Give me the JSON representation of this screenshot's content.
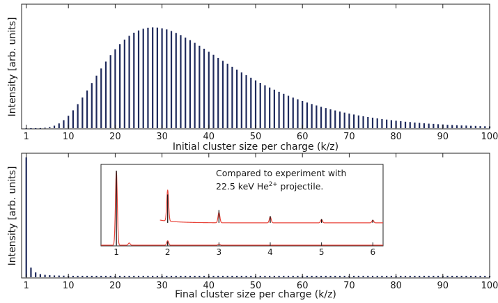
{
  "chart_data": [
    {
      "type": "bar",
      "panel": "top",
      "xlabel": "Initial cluster size per charge (k/z)",
      "ylabel": "Intensity [arb. units]",
      "xlim": [
        0,
        100
      ],
      "ylim": [
        0,
        1.05
      ],
      "xticks": [
        1,
        10,
        20,
        30,
        40,
        50,
        60,
        70,
        80,
        90,
        100
      ],
      "bar_color": "#1f2a5c",
      "x_start": 1,
      "values": [
        0.0,
        0.0,
        0.0,
        0.001,
        0.004,
        0.01,
        0.022,
        0.042,
        0.071,
        0.11,
        0.158,
        0.213,
        0.272,
        0.334,
        0.4,
        0.465,
        0.529,
        0.59,
        0.647,
        0.699,
        0.745,
        0.785,
        0.818,
        0.846,
        0.866,
        0.881,
        0.89,
        0.893,
        0.891,
        0.885,
        0.875,
        0.861,
        0.844,
        0.825,
        0.803,
        0.78,
        0.756,
        0.73,
        0.704,
        0.677,
        0.65,
        0.623,
        0.597,
        0.57,
        0.544,
        0.519,
        0.494,
        0.47,
        0.446,
        0.423,
        0.401,
        0.38,
        0.36,
        0.341,
        0.322,
        0.304,
        0.287,
        0.271,
        0.256,
        0.241,
        0.227,
        0.214,
        0.201,
        0.189,
        0.178,
        0.167,
        0.157,
        0.147,
        0.138,
        0.129,
        0.121,
        0.113,
        0.106,
        0.099,
        0.093,
        0.087,
        0.081,
        0.076,
        0.071,
        0.066,
        0.062,
        0.057,
        0.054,
        0.05,
        0.047,
        0.043,
        0.04,
        0.038,
        0.035,
        0.033,
        0.03,
        0.028,
        0.026,
        0.024,
        0.023,
        0.021,
        0.02,
        0.018,
        0.017,
        0.016
      ]
    },
    {
      "type": "bar",
      "panel": "bottom",
      "xlabel": "Final cluster size per charge (k/z)",
      "ylabel": "Intensity [arb. units]",
      "xlim": [
        0,
        100
      ],
      "ylim": [
        0,
        1.05
      ],
      "xticks": [
        1,
        10,
        20,
        30,
        40,
        50,
        60,
        70,
        80,
        90,
        100
      ],
      "bar_color": "#1f2a5c",
      "x_start": 1,
      "values": [
        1.0,
        0.08,
        0.04,
        0.026,
        0.02,
        0.017,
        0.015,
        0.014,
        0.013,
        0.012,
        0.012,
        0.012,
        0.012,
        0.012,
        0.012,
        0.012,
        0.012,
        0.012,
        0.012,
        0.012,
        0.012,
        0.012,
        0.012,
        0.012,
        0.012,
        0.012,
        0.012,
        0.012,
        0.012,
        0.012,
        0.012,
        0.012,
        0.012,
        0.012,
        0.012,
        0.012,
        0.012,
        0.012,
        0.012,
        0.012,
        0.012,
        0.012,
        0.012,
        0.012,
        0.012,
        0.012,
        0.012,
        0.012,
        0.012,
        0.012,
        0.012,
        0.012,
        0.012,
        0.012,
        0.012,
        0.012,
        0.012,
        0.012,
        0.012,
        0.012,
        0.012,
        0.012,
        0.012,
        0.012,
        0.012,
        0.012,
        0.012,
        0.012,
        0.012,
        0.012,
        0.012,
        0.012,
        0.012,
        0.012,
        0.012,
        0.012,
        0.012,
        0.012,
        0.012,
        0.012,
        0.012,
        0.012,
        0.012,
        0.012,
        0.012,
        0.012,
        0.012,
        0.012,
        0.012,
        0.012,
        0.012,
        0.012,
        0.012,
        0.012,
        0.012,
        0.012,
        0.012,
        0.012,
        0.012,
        0.012
      ]
    },
    {
      "type": "line",
      "panel": "inset",
      "xlim": [
        0.7,
        6.2
      ],
      "ylim": [
        0,
        1.0
      ],
      "xticks": [
        1,
        2,
        3,
        4,
        5,
        6
      ],
      "annotation_line1": "Compared to experiment with",
      "annotation_line2_prefix": "22.5 keV He",
      "annotation_superscript": "2+",
      "annotation_line2_suffix": " projectile.",
      "series": [
        {
          "color": "#e8443a",
          "baseline": 0.0,
          "peaks": [
            {
              "x": 1.0,
              "height": 1.0
            },
            {
              "x": 1.25,
              "height": 0.03
            },
            {
              "x": 2.0,
              "height": 0.06
            },
            {
              "x": 3.0,
              "height": 0.015
            }
          ]
        },
        {
          "color": "#e8443a",
          "baseline": 0.3,
          "x_from": 1.85,
          "x_to": 6.2,
          "peaks": [
            {
              "x": 2.0,
              "height": 0.42
            },
            {
              "x": 3.0,
              "height": 0.14
            },
            {
              "x": 4.0,
              "height": 0.08
            },
            {
              "x": 5.0,
              "height": 0.045
            },
            {
              "x": 6.0,
              "height": 0.035
            }
          ]
        },
        {
          "color": "#111111",
          "baseline": 0.3,
          "sticks": [
            {
              "x": 2.0,
              "height": 0.38
            },
            {
              "x": 3.0,
              "height": 0.17
            },
            {
              "x": 4.0,
              "height": 0.09
            },
            {
              "x": 5.0,
              "height": 0.05
            },
            {
              "x": 6.0,
              "height": 0.04
            }
          ]
        },
        {
          "color": "#111111",
          "baseline": 0.0,
          "sticks": [
            {
              "x": 1.0,
              "height": 1.0
            },
            {
              "x": 2.0,
              "height": 0.05
            }
          ]
        }
      ]
    }
  ]
}
